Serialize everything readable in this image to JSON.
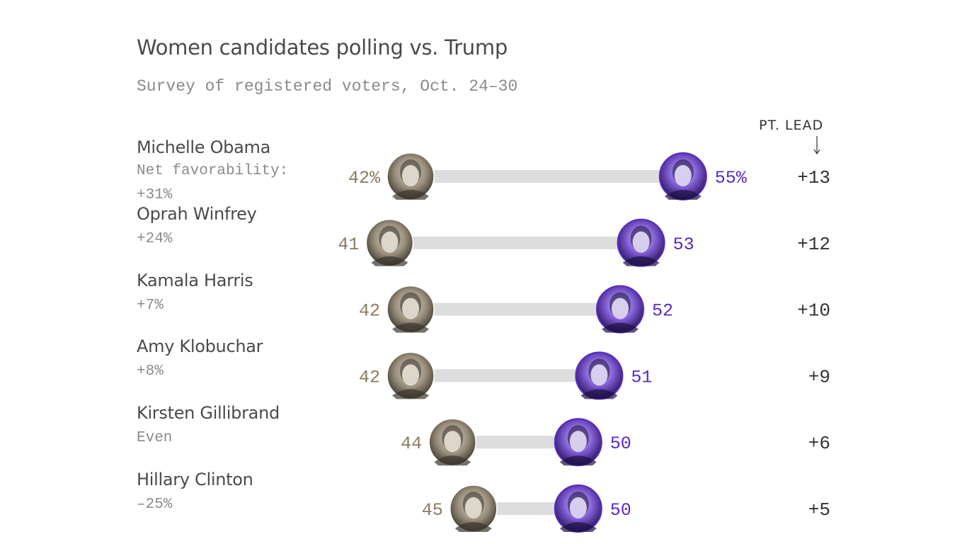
{
  "title": "Women candidates polling vs. Trump",
  "subtitle": "Survey of registered voters, Oct. 24–30",
  "lead_header": "PT. LEAD",
  "colors": {
    "trump": "#8c7a5e",
    "candidate": "#5a28c8",
    "bar": "#dddddd",
    "lead": "#333333"
  },
  "rows": [
    {
      "name": "Michelle Obama",
      "fav_label": "Net favorability:",
      "fav": "+31%",
      "trump": 42,
      "dem": 55,
      "trump_label": "42%",
      "dem_label": "55%",
      "lead": "+13"
    },
    {
      "name": "Oprah Winfrey",
      "fav_label": "",
      "fav": "+24%",
      "trump": 41,
      "dem": 53,
      "trump_label": "41",
      "dem_label": "53",
      "lead": "+12"
    },
    {
      "name": "Kamala Harris",
      "fav_label": "",
      "fav": "+7%",
      "trump": 42,
      "dem": 52,
      "trump_label": "42",
      "dem_label": "52",
      "lead": "+10"
    },
    {
      "name": "Amy Klobuchar",
      "fav_label": "",
      "fav": "+8%",
      "trump": 42,
      "dem": 51,
      "trump_label": "42",
      "dem_label": "51",
      "lead": "+9"
    },
    {
      "name": "Kirsten Gillibrand",
      "fav_label": "",
      "fav": "Even",
      "trump": 44,
      "dem": 50,
      "trump_label": "44",
      "dem_label": "50",
      "lead": "+6"
    },
    {
      "name": "Hillary Clinton",
      "fav_label": "",
      "fav": "–25%",
      "trump": 45,
      "dem": 50,
      "trump_label": "45",
      "dem_label": "50",
      "lead": "+5"
    }
  ],
  "chart_data": {
    "type": "dumbbell",
    "title": "Women candidates polling vs. Trump",
    "subtitle": "Survey of registered voters, Oct. 24–30",
    "categories": [
      "Michelle Obama",
      "Oprah Winfrey",
      "Kamala Harris",
      "Amy Klobuchar",
      "Kirsten Gillibrand",
      "Hillary Clinton"
    ],
    "series": [
      {
        "values": [
          42,
          41,
          42,
          42,
          44,
          45
        ]
      },
      {
        "values": [
          55,
          53,
          52,
          51,
          50,
          50
        ]
      }
    ],
    "lead": [
      13,
      12,
      10,
      9,
      6,
      5
    ],
    "net_favorability": [
      "+31%",
      "+24%",
      "+7%",
      "+8%",
      "Even",
      "–25%"
    ]
  }
}
